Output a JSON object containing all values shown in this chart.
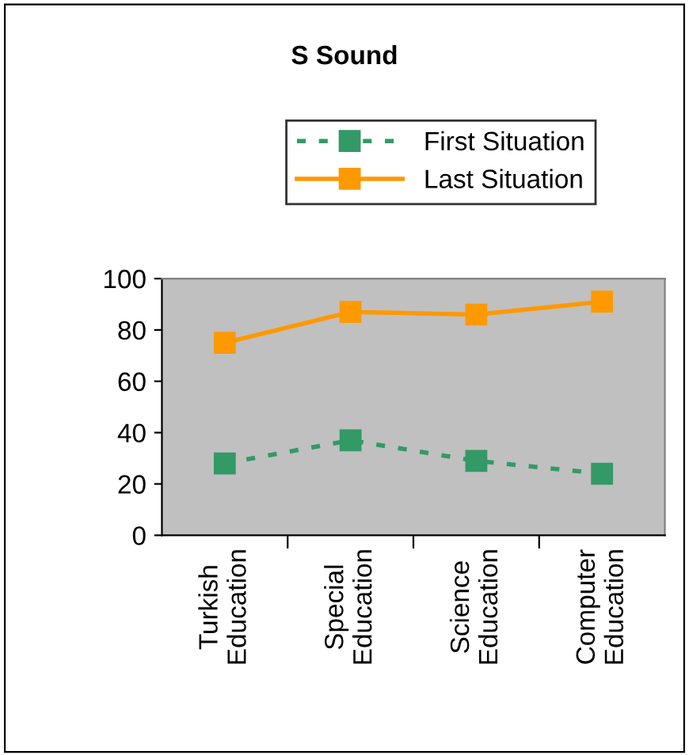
{
  "chart_data": {
    "type": "line",
    "title": "S Sound",
    "categories": [
      "Turkish Education",
      "Special Education",
      "Science Education",
      "Computer Education"
    ],
    "series": [
      {
        "name": "First Situation",
        "color": "#339966",
        "values": [
          28,
          37,
          29,
          24
        ],
        "line_style": "dotted"
      },
      {
        "name": "Last Situation",
        "color": "#ff9900",
        "values": [
          75,
          87,
          86,
          91
        ],
        "line_style": "solid"
      }
    ],
    "marker": "square",
    "ylim": [
      0,
      100
    ],
    "yticks": [
      0,
      20,
      40,
      60,
      80,
      100
    ],
    "grid": false,
    "legend": "top"
  }
}
